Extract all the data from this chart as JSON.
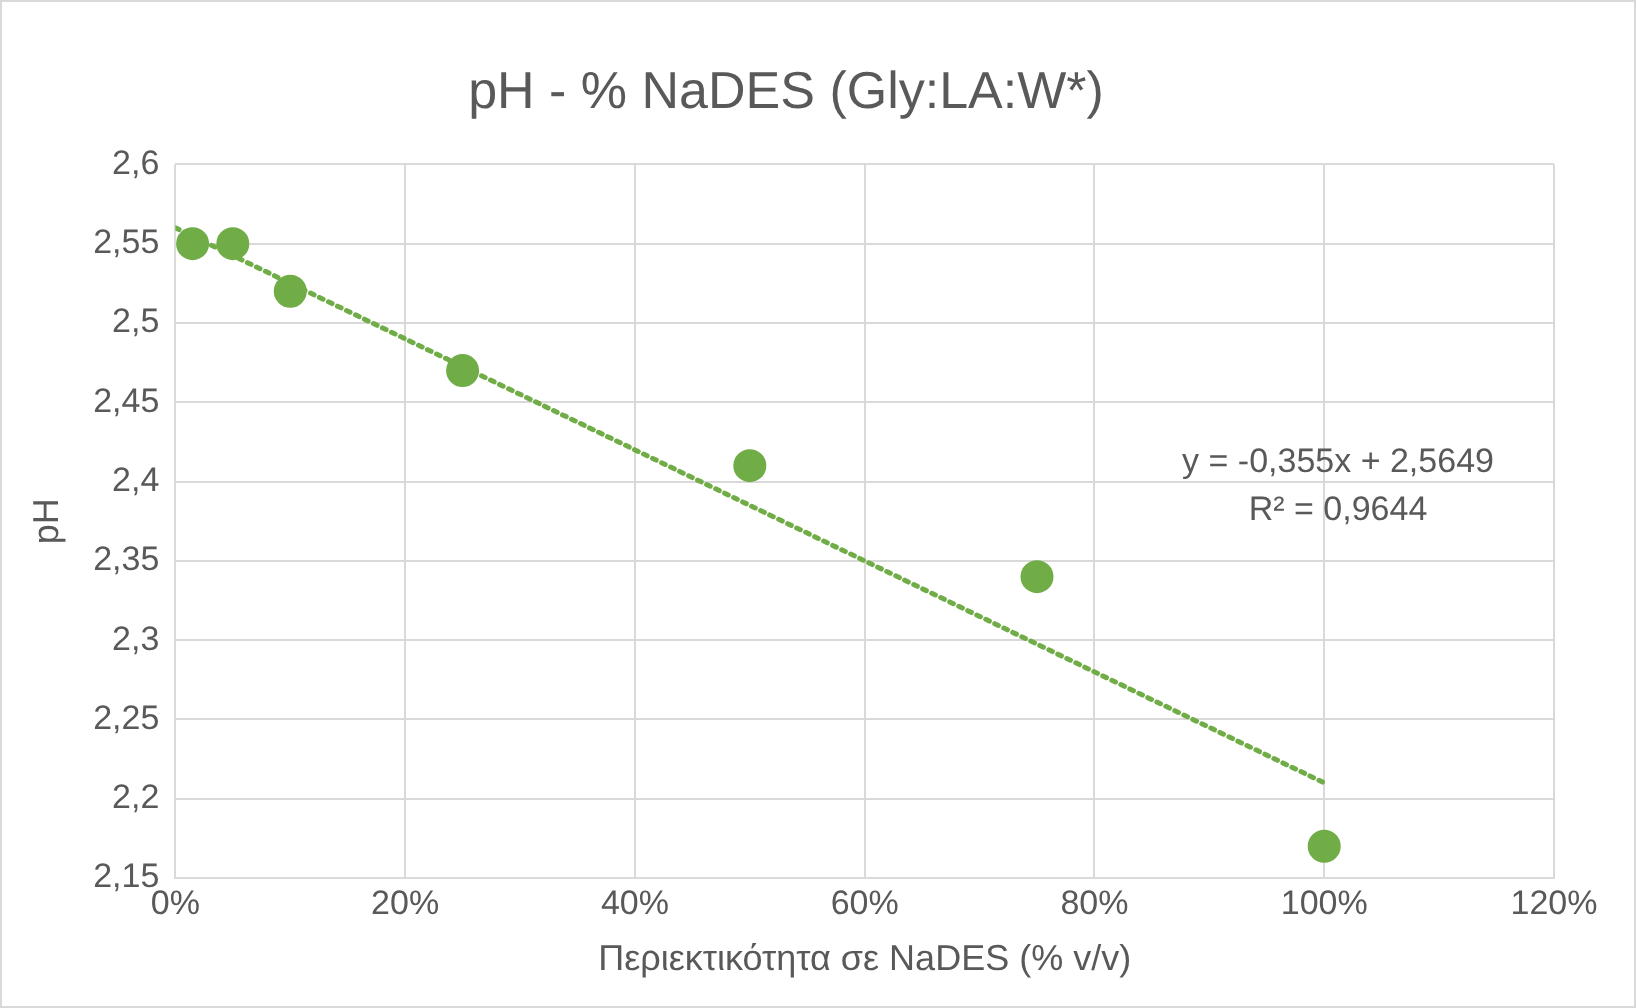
{
  "chart_data": {
    "type": "scatter",
    "title": "pH - % NaDES (Gly:LA:W*)",
    "xlabel": "Περιεκτικότητα σε NaDES (% v/v)",
    "ylabel": "pH",
    "series": [
      {
        "type": "scatter",
        "color": "#70ad47",
        "x": [
          0.015,
          0.05,
          0.1,
          0.25,
          0.5,
          0.75,
          1
        ],
        "values": [
          2.55,
          2.55,
          2.52,
          2.47,
          2.41,
          2.34,
          2.17
        ],
        "marker": "circle"
      },
      {
        "type": "line",
        "color": "#70ad47",
        "x": [
          0,
          1
        ],
        "values": [
          2.56,
          2.21
        ],
        "line_style": "dotted",
        "marker": "none"
      }
    ],
    "xlim": [
      0,
      1.2
    ],
    "xticks": [
      {
        "value": 0,
        "label": "0%"
      },
      {
        "value": 0.2,
        "label": "20%"
      },
      {
        "value": 0.4,
        "label": "40%"
      },
      {
        "value": 0.6,
        "label": "60%"
      },
      {
        "value": 0.8,
        "label": "80%"
      },
      {
        "value": 1,
        "label": "100%"
      },
      {
        "value": 1.2,
        "label": "120%"
      }
    ],
    "ylim": [
      2.15,
      2.6
    ],
    "yticks": [
      {
        "value": 2.15,
        "label": "2,15"
      },
      {
        "value": 2.2,
        "label": "2,2"
      },
      {
        "value": 2.25,
        "label": "2,25"
      },
      {
        "value": 2.3,
        "label": "2,3"
      },
      {
        "value": 2.35,
        "label": "2,35"
      },
      {
        "value": 2.4,
        "label": "2,4"
      },
      {
        "value": 2.45,
        "label": "2,45"
      },
      {
        "value": 2.5,
        "label": "2,5"
      },
      {
        "value": 2.55,
        "label": "2,55"
      },
      {
        "value": 2.6,
        "label": "2,6"
      }
    ],
    "grid": true,
    "legend": false,
    "annotations": [
      "y = -0,355x + 2,5649",
      "R² = 0,9644"
    ]
  }
}
